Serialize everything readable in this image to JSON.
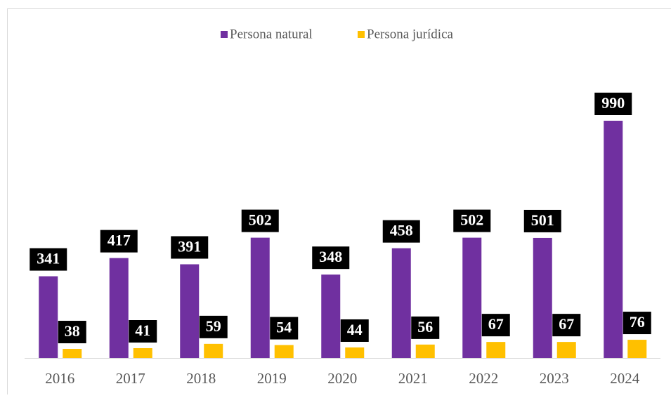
{
  "chart_data": {
    "type": "bar",
    "categories": [
      "2016",
      "2017",
      "2018",
      "2019",
      "2020",
      "2021",
      "2022",
      "2023",
      "2024"
    ],
    "series": [
      {
        "name": "Persona natural",
        "color": "#7030a0",
        "values": [
          341,
          417,
          391,
          502,
          348,
          458,
          502,
          501,
          990
        ]
      },
      {
        "name": "Persona jurídica",
        "color": "#ffc000",
        "values": [
          38,
          41,
          59,
          54,
          44,
          56,
          67,
          67,
          76
        ]
      }
    ],
    "legend": "top"
  }
}
